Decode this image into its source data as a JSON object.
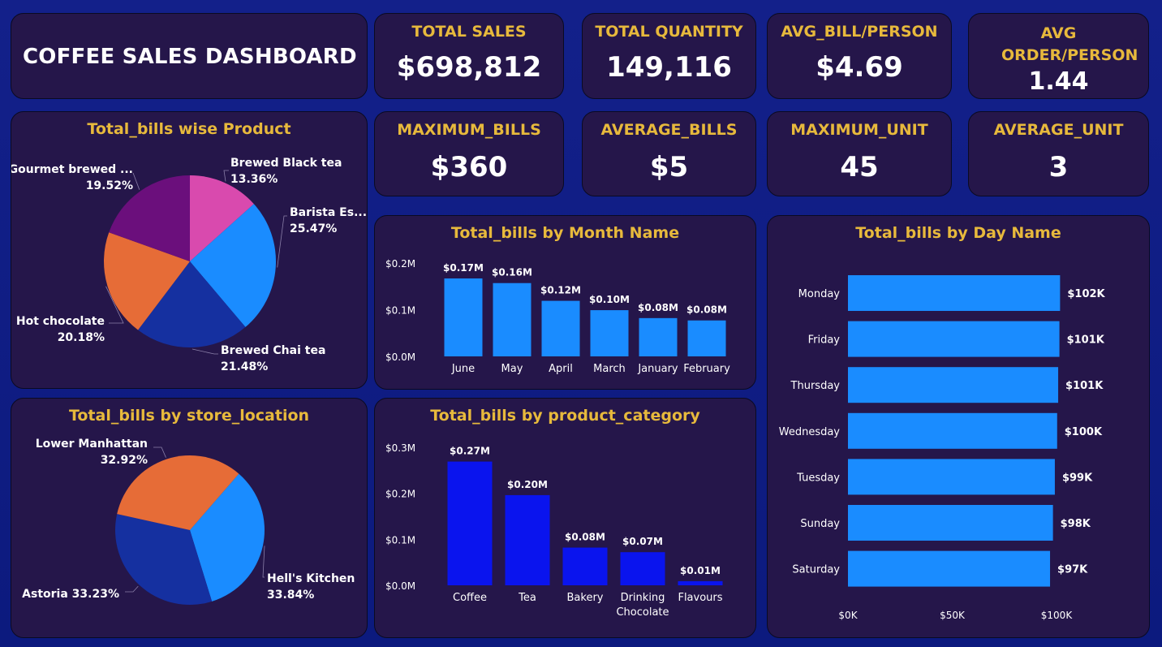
{
  "dashboard": {
    "title": "COFFEE SALES DASHBOARD"
  },
  "kpis": {
    "total_sales": {
      "label": "TOTAL SALES",
      "value": "$698,812"
    },
    "total_quantity": {
      "label": "TOTAL QUANTITY",
      "value": "149,116"
    },
    "avg_bill": {
      "label": "AVG_BILL/PERSON",
      "value": "$4.69"
    },
    "avg_order": {
      "label": "AVG ORDER/PERSON",
      "value": "1.44"
    },
    "max_bills": {
      "label": "MAXIMUM_BILLS",
      "value": "$360"
    },
    "average_bills": {
      "label": "AVERAGE_BILLS",
      "value": "$5"
    },
    "max_unit": {
      "label": "MAXIMUM_UNIT",
      "value": "45"
    },
    "average_unit": {
      "label": "AVERAGE_UNIT",
      "value": "3"
    }
  },
  "chart_data": [
    {
      "id": "product_pie",
      "type": "pie",
      "title": "Total_bills wise Product",
      "slices": [
        {
          "label": "Brewed Black tea",
          "pct_label": "13.36%",
          "value": 13.36,
          "color": "#d94aae"
        },
        {
          "label": "Barista Es...",
          "pct_label": "25.47%",
          "value": 25.47,
          "color": "#1a8cff"
        },
        {
          "label": "Brewed Chai tea",
          "pct_label": "21.48%",
          "value": 21.48,
          "color": "#1530a0"
        },
        {
          "label": "Hot chocolate",
          "pct_label": "20.18%",
          "value": 20.18,
          "color": "#e66c37"
        },
        {
          "label": "Gourmet brewed ...",
          "pct_label": "19.52%",
          "value": 19.52,
          "color": "#6b0f7c"
        }
      ]
    },
    {
      "id": "store_pie",
      "type": "pie",
      "title": "Total_bills by store_location",
      "slices": [
        {
          "label": "Hell's Kitchen",
          "pct_label": "33.84%",
          "value": 33.84,
          "color": "#1a8cff"
        },
        {
          "label": "Astoria 33.23%",
          "pct_label": "",
          "value": 33.23,
          "color": "#1530a0"
        },
        {
          "label": "Lower Manhattan",
          "pct_label": "32.92%",
          "value": 32.92,
          "color": "#e66c37"
        }
      ]
    },
    {
      "id": "month_bar",
      "type": "bar",
      "title": "Total_bills by Month Name",
      "categories": [
        "June",
        "May",
        "April",
        "March",
        "January",
        "February"
      ],
      "values": [
        0.167,
        0.157,
        0.119,
        0.099,
        0.082,
        0.077
      ],
      "data_labels": [
        "$0.17M",
        "$0.16M",
        "$0.12M",
        "$0.10M",
        "$0.08M",
        "$0.08M"
      ],
      "ylim": [
        0,
        0.2
      ],
      "yticks": [
        {
          "v": 0,
          "label": "$0.0M"
        },
        {
          "v": 0.1,
          "label": "$0.1M"
        },
        {
          "v": 0.2,
          "label": "$0.2M"
        }
      ],
      "color": "#1a8cff"
    },
    {
      "id": "category_bar",
      "type": "bar",
      "title": "Total_bills by product_category",
      "categories": [
        "Coffee",
        "Tea",
        "Bakery",
        "Drinking Chocolate",
        "Flavours"
      ],
      "values": [
        0.269,
        0.196,
        0.082,
        0.072,
        0.009
      ],
      "data_labels": [
        "$0.27M",
        "$0.20M",
        "$0.08M",
        "$0.07M",
        "$0.01M"
      ],
      "ylim": [
        0,
        0.3
      ],
      "yticks": [
        {
          "v": 0,
          "label": "$0.0M"
        },
        {
          "v": 0.1,
          "label": "$0.1M"
        },
        {
          "v": 0.2,
          "label": "$0.2M"
        },
        {
          "v": 0.3,
          "label": "$0.3M"
        }
      ],
      "color": "#0a14ee"
    },
    {
      "id": "day_bar",
      "type": "bar",
      "orientation": "horizontal",
      "title": "Total_bills by Day Name",
      "categories": [
        "Monday",
        "Friday",
        "Thursday",
        "Wednesday",
        "Tuesday",
        "Sunday",
        "Saturday"
      ],
      "values": [
        101.7,
        101.4,
        100.8,
        100.3,
        99.2,
        98.3,
        96.9
      ],
      "data_labels": [
        "$102K",
        "$101K",
        "$101K",
        "$100K",
        "$99K",
        "$98K",
        "$97K"
      ],
      "xlim": [
        0,
        100
      ],
      "xticks": [
        {
          "v": 0,
          "label": "$0K"
        },
        {
          "v": 50,
          "label": "$50K"
        },
        {
          "v": 100,
          "label": "$100K"
        }
      ],
      "color": "#1a8cff"
    }
  ]
}
